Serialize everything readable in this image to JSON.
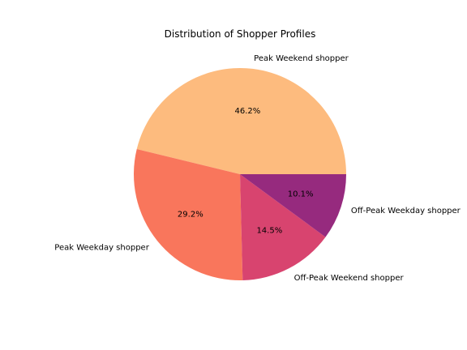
{
  "chart_data": {
    "type": "pie",
    "title": "Distribution of Shopper Profiles",
    "categories": [
      "Peak Weekend shopper",
      "Peak Weekday shopper",
      "Off-Peak Weekend shopper",
      "Off-Peak Weekday shopper"
    ],
    "values": [
      46.2,
      29.2,
      14.5,
      10.1
    ],
    "percent_labels": [
      "46.2%",
      "29.2%",
      "14.5%",
      "10.1%"
    ],
    "colors": [
      "#fdbb7e",
      "#f9765c",
      "#d8446f",
      "#962a7e"
    ],
    "start_angle_deg": 0,
    "direction": "counterclockwise",
    "legend": "none"
  }
}
